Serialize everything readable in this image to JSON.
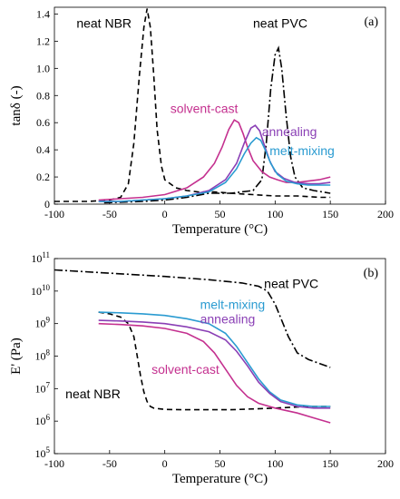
{
  "chart_data": [
    {
      "type": "line",
      "panel_label": "(a)",
      "xlabel": "Temperature (°C)",
      "ylabel": "tanδ (-)",
      "xlim": [
        -100,
        200
      ],
      "ylim": [
        0,
        1.45
      ],
      "xticks": [
        -100,
        -50,
        0,
        50,
        100,
        150,
        200
      ],
      "yticks": [
        0,
        0.2,
        0.4,
        0.6,
        0.8,
        1.0,
        1.2,
        1.4
      ],
      "ytick_labels": [
        "0",
        "0.2",
        "0.4",
        "0.6",
        "0.8",
        "1.0",
        "1.2",
        "1.4"
      ],
      "grid": false,
      "series": [
        {
          "name": "neat NBR",
          "color": "#000000",
          "dash": "dashed",
          "x": [
            -100,
            -70,
            -50,
            -40,
            -33,
            -28,
            -23,
            -19,
            -16,
            -13,
            -10,
            -7,
            -3,
            0,
            10,
            20,
            30,
            45,
            60,
            80,
            100,
            120,
            140,
            150
          ],
          "y": [
            0.02,
            0.02,
            0.03,
            0.05,
            0.15,
            0.45,
            0.95,
            1.3,
            1.44,
            1.3,
            0.95,
            0.55,
            0.28,
            0.18,
            0.12,
            0.1,
            0.09,
            0.09,
            0.08,
            0.07,
            0.06,
            0.06,
            0.05,
            0.05
          ]
        },
        {
          "name": "neat PVC",
          "color": "#000000",
          "dash": "dashdot",
          "x": [
            -55,
            -20,
            0,
            20,
            40,
            60,
            80,
            88,
            92,
            96,
            100,
            103,
            106,
            110,
            114,
            118,
            125,
            135,
            150
          ],
          "y": [
            0.01,
            0.02,
            0.03,
            0.05,
            0.08,
            0.08,
            0.1,
            0.18,
            0.45,
            0.85,
            1.1,
            1.15,
            1.0,
            0.65,
            0.35,
            0.2,
            0.12,
            0.1,
            0.08
          ]
        },
        {
          "name": "solvent-cast",
          "color": "#c4308f",
          "dash": "solid",
          "x": [
            -60,
            -40,
            -20,
            0,
            20,
            35,
            45,
            52,
            58,
            63,
            67,
            71,
            75,
            80,
            88,
            95,
            102,
            110,
            120,
            130,
            140,
            150
          ],
          "y": [
            0.03,
            0.04,
            0.05,
            0.07,
            0.12,
            0.2,
            0.3,
            0.42,
            0.55,
            0.62,
            0.6,
            0.52,
            0.42,
            0.32,
            0.24,
            0.2,
            0.18,
            0.16,
            0.16,
            0.17,
            0.18,
            0.2
          ]
        },
        {
          "name": "annealing",
          "color": "#8a3fb5",
          "dash": "solid",
          "x": [
            -60,
            -40,
            -20,
            0,
            20,
            40,
            55,
            65,
            72,
            78,
            82,
            86,
            90,
            95,
            100,
            108,
            118,
            130,
            140,
            150
          ],
          "y": [
            0.02,
            0.02,
            0.03,
            0.04,
            0.06,
            0.1,
            0.18,
            0.3,
            0.45,
            0.56,
            0.58,
            0.54,
            0.44,
            0.32,
            0.24,
            0.19,
            0.16,
            0.15,
            0.15,
            0.16
          ]
        },
        {
          "name": "melt-mixing",
          "color": "#2a9bd1",
          "dash": "solid",
          "x": [
            -60,
            -40,
            -20,
            0,
            20,
            40,
            55,
            65,
            72,
            78,
            83,
            87,
            91,
            96,
            102,
            110,
            120,
            130,
            140,
            150
          ],
          "y": [
            0.02,
            0.02,
            0.03,
            0.04,
            0.06,
            0.09,
            0.16,
            0.26,
            0.37,
            0.45,
            0.49,
            0.47,
            0.4,
            0.3,
            0.22,
            0.17,
            0.15,
            0.14,
            0.14,
            0.14
          ]
        }
      ],
      "annotations": [
        {
          "text": "neat NBR",
          "x": -80,
          "y": 1.3,
          "color": "#000000"
        },
        {
          "text": "neat PVC",
          "x": 80,
          "y": 1.3,
          "color": "#000000"
        },
        {
          "text": "solvent-cast",
          "x": 5,
          "y": 0.67,
          "color": "#c4308f"
        },
        {
          "text": "annealing",
          "x": 88,
          "y": 0.5,
          "color": "#8a3fb5"
        },
        {
          "text": "melt-mixing",
          "x": 95,
          "y": 0.36,
          "color": "#2a9bd1"
        }
      ]
    },
    {
      "type": "line",
      "panel_label": "(b)",
      "xlabel": "Temperature (°C)",
      "ylabel": "E' (Pa)",
      "xlim": [
        -100,
        200
      ],
      "ylim_log10": [
        5,
        11
      ],
      "scale": "log",
      "xticks": [
        -100,
        -50,
        0,
        50,
        100,
        150,
        200
      ],
      "ytick_exponents": [
        5,
        6,
        7,
        8,
        9,
        10,
        11
      ],
      "ytick_base": "10",
      "grid": false,
      "series": [
        {
          "name": "neat NBR",
          "color": "#000000",
          "dash": "dashed",
          "x": [
            -60,
            -50,
            -40,
            -33,
            -28,
            -25,
            -22,
            -19,
            -16,
            -13,
            -10,
            -5,
            0,
            20,
            60,
            100,
            130,
            150
          ],
          "log10_y": [
            9.35,
            9.3,
            9.2,
            9.0,
            8.6,
            8.0,
            7.4,
            6.9,
            6.6,
            6.45,
            6.4,
            6.38,
            6.36,
            6.35,
            6.35,
            6.4,
            6.45,
            6.45
          ],
          "y": [
            2200000000.0,
            2000000000.0,
            1600000000.0,
            1000000000.0,
            400000000.0,
            100000000.0,
            25000000.0,
            7900000.0,
            4000000.0,
            2800000.0,
            2500000.0,
            2400000.0,
            2300000.0,
            2200000.0,
            2200000.0,
            2500000.0,
            2800000.0,
            2800000.0
          ]
        },
        {
          "name": "neat PVC",
          "color": "#000000",
          "dash": "dashdot",
          "x": [
            -100,
            -50,
            0,
            40,
            70,
            85,
            93,
            100,
            106,
            112,
            120,
            130,
            150
          ],
          "log10_y": [
            10.65,
            10.55,
            10.45,
            10.35,
            10.25,
            10.15,
            10.0,
            9.6,
            9.1,
            8.6,
            8.1,
            7.9,
            7.65
          ],
          "y": [
            45000000000.0,
            35000000000.0,
            28000000000.0,
            22000000000.0,
            18000000000.0,
            14000000000.0,
            10000000000.0,
            4000000000.0,
            1300000000.0,
            400000000.0,
            130000000.0,
            79000000.0,
            45000000.0
          ]
        },
        {
          "name": "melt-mixing",
          "color": "#2a9bd1",
          "dash": "solid",
          "x": [
            -60,
            -40,
            -20,
            0,
            20,
            40,
            55,
            65,
            75,
            85,
            95,
            105,
            120,
            135,
            150
          ],
          "log10_y": [
            9.35,
            9.33,
            9.3,
            9.25,
            9.15,
            9.0,
            8.7,
            8.3,
            7.8,
            7.3,
            6.9,
            6.65,
            6.5,
            6.45,
            6.45
          ],
          "y": [
            2200000000.0,
            2100000000.0,
            2000000000.0,
            1800000000.0,
            1400000000.0,
            1000000000.0,
            500000000.0,
            200000000.0,
            63000000.0,
            20000000.0,
            7900000.0,
            4500000.0,
            3200000.0,
            2800000.0,
            2800000.0
          ]
        },
        {
          "name": "annealing",
          "color": "#8a3fb5",
          "dash": "solid",
          "x": [
            -60,
            -40,
            -20,
            0,
            20,
            40,
            55,
            65,
            75,
            85,
            95,
            105,
            120,
            135,
            150
          ],
          "log10_y": [
            9.1,
            9.08,
            9.05,
            9.0,
            8.9,
            8.75,
            8.5,
            8.15,
            7.7,
            7.2,
            6.85,
            6.6,
            6.45,
            6.4,
            6.4
          ],
          "y": [
            1300000000.0,
            1200000000.0,
            1100000000.0,
            1000000000.0,
            790000000.0,
            560000000.0,
            320000000.0,
            140000000.0,
            50000000.0,
            16000000.0,
            7100000.0,
            4000000.0,
            2800000.0,
            2500000.0,
            2500000.0
          ]
        },
        {
          "name": "solvent-cast",
          "color": "#c4308f",
          "dash": "solid",
          "x": [
            -60,
            -40,
            -20,
            0,
            20,
            35,
            45,
            55,
            65,
            75,
            85,
            100,
            120,
            135,
            150
          ],
          "log10_y": [
            9.0,
            8.97,
            8.93,
            8.85,
            8.7,
            8.45,
            8.1,
            7.6,
            7.1,
            6.75,
            6.55,
            6.4,
            6.25,
            6.1,
            5.95
          ],
          "y": [
            1000000000.0,
            930000000.0,
            850000000.0,
            710000000.0,
            500000000.0,
            280000000.0,
            130000000.0,
            40000000.0,
            13000000.0,
            5600000.0,
            3500000.0,
            2500000.0,
            1800000.0,
            1300000.0,
            890000.0
          ]
        }
      ],
      "annotations": [
        {
          "text": "neat PVC",
          "x": 90,
          "log10_y": 10.1,
          "color": "#000000"
        },
        {
          "text": "melt-mixing",
          "x": 32,
          "log10_y": 9.45,
          "color": "#2a9bd1"
        },
        {
          "text": "annealing",
          "x": 32,
          "log10_y": 9.0,
          "color": "#8a3fb5"
        },
        {
          "text": "solvent-cast",
          "x": -12,
          "log10_y": 7.45,
          "color": "#c4308f"
        },
        {
          "text": "neat NBR",
          "x": -90,
          "log10_y": 6.7,
          "color": "#000000"
        }
      ]
    }
  ]
}
